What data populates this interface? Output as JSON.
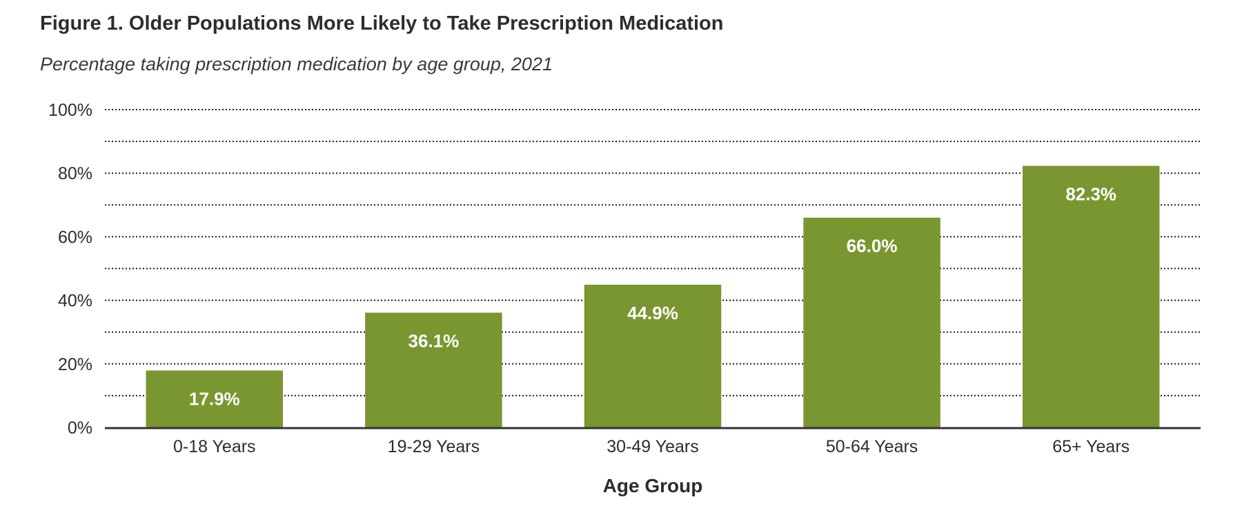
{
  "title": "Figure 1. Older Populations More Likely to Take Prescription Medication",
  "subtitle": "Percentage taking prescription medication by age group, 2021",
  "chart_data": {
    "type": "bar",
    "categories": [
      "0-18 Years",
      "19-29 Years",
      "30-49 Years",
      "50-64 Years",
      "65+ Years"
    ],
    "values": [
      17.9,
      36.1,
      44.9,
      66.0,
      82.3
    ],
    "value_labels": [
      "17.9%",
      "36.1%",
      "44.9%",
      "66.0%",
      "82.3%"
    ],
    "ylim": [
      0,
      100
    ],
    "yticks": [
      0,
      20,
      40,
      60,
      80,
      100
    ],
    "ytick_labels": [
      "0%",
      "20%",
      "40%",
      "60%",
      "80%",
      "100%"
    ],
    "xlabel": "Age Group",
    "ylabel": "",
    "grid": "dotted, every 10%",
    "legend": "none",
    "bar_color": "#7a9630",
    "gridline_color": "#1a1a1a",
    "axis_color": "#333333"
  }
}
